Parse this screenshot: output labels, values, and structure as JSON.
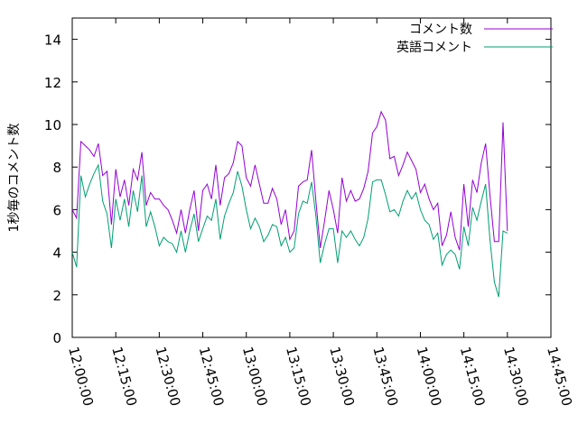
{
  "chart_data": {
    "type": "line",
    "ylabel": "1秒毎のコメント数",
    "ylim": [
      0,
      15
    ],
    "yticks": [
      "0",
      "2",
      "4",
      "6",
      "8",
      "10",
      "12",
      "14"
    ],
    "xticks": [
      "12:00:00",
      "12:15:00",
      "12:30:00",
      "12:45:00",
      "13:00:00",
      "13:15:00",
      "13:30:00",
      "13:45:00",
      "14:00:00",
      "14:15:00",
      "14:30:00",
      "14:45:00"
    ],
    "xlim_minutes": [
      0,
      165
    ],
    "x_start": "12:00:00",
    "x_step_minutes": 1.5,
    "legend_position": "top-right",
    "series": [
      {
        "name": "コメント数",
        "color": "#9400d3",
        "values": [
          6.0,
          5.6,
          9.2,
          9.0,
          8.8,
          8.5,
          9.1,
          7.6,
          7.8,
          5.3,
          7.9,
          6.6,
          7.4,
          6.2,
          7.9,
          7.4,
          8.7,
          6.2,
          6.8,
          6.5,
          6.5,
          6.2,
          6.0,
          5.5,
          4.9,
          6.0,
          4.9,
          6.0,
          6.9,
          5.0,
          6.9,
          7.2,
          6.5,
          8.1,
          6.2,
          7.5,
          7.7,
          8.2,
          9.2,
          9.0,
          7.5,
          7.1,
          8.1,
          7.2,
          6.3,
          6.3,
          7.0,
          6.5,
          5.3,
          6.0,
          4.6,
          5.0,
          7.1,
          7.3,
          7.4,
          8.8,
          6.4,
          4.2,
          5.5,
          6.9,
          6.0,
          4.9,
          7.5,
          6.4,
          6.9,
          6.4,
          6.5,
          7.0,
          7.8,
          9.6,
          9.9,
          10.6,
          10.2,
          8.4,
          8.5,
          7.6,
          8.1,
          8.7,
          8.3,
          7.9,
          6.8,
          7.2,
          6.5,
          6.0,
          6.3,
          4.3,
          4.8,
          5.9,
          4.7,
          4.1,
          7.2,
          5.2,
          7.4,
          6.8,
          8.2,
          9.1,
          6.7,
          4.5,
          4.5,
          10.1,
          5.0
        ],
        "values_note": ""
      },
      {
        "name": "英語コメント",
        "color": "#009e73",
        "values": [
          4.0,
          3.3,
          7.6,
          6.6,
          7.2,
          7.7,
          8.1,
          6.4,
          5.8,
          4.2,
          6.5,
          5.5,
          6.5,
          5.2,
          6.9,
          5.9,
          7.6,
          5.2,
          5.9,
          5.2,
          4.3,
          4.7,
          4.5,
          4.4,
          4.0,
          5.0,
          4.0,
          5.0,
          5.8,
          4.5,
          5.1,
          5.7,
          5.5,
          6.5,
          4.6,
          5.7,
          6.3,
          6.8,
          7.8,
          7.1,
          6.0,
          5.1,
          5.6,
          5.2,
          4.5,
          4.8,
          5.3,
          5.2,
          4.3,
          4.7,
          4.0,
          4.2,
          5.8,
          6.4,
          6.3,
          7.3,
          5.7,
          3.5,
          4.4,
          5.1,
          5.1,
          3.5,
          5.0,
          4.7,
          5.0,
          4.6,
          4.3,
          4.7,
          5.6,
          7.3,
          7.4,
          7.4,
          6.7,
          5.9,
          6.0,
          5.7,
          6.4,
          6.9,
          6.5,
          6.8,
          6.0,
          5.5,
          5.3,
          4.6,
          4.9,
          3.4,
          3.9,
          4.1,
          3.9,
          3.2,
          5.2,
          4.3,
          6.1,
          5.5,
          6.4,
          7.2,
          4.6,
          2.6,
          1.9,
          5.0,
          4.9
        ]
      }
    ]
  }
}
